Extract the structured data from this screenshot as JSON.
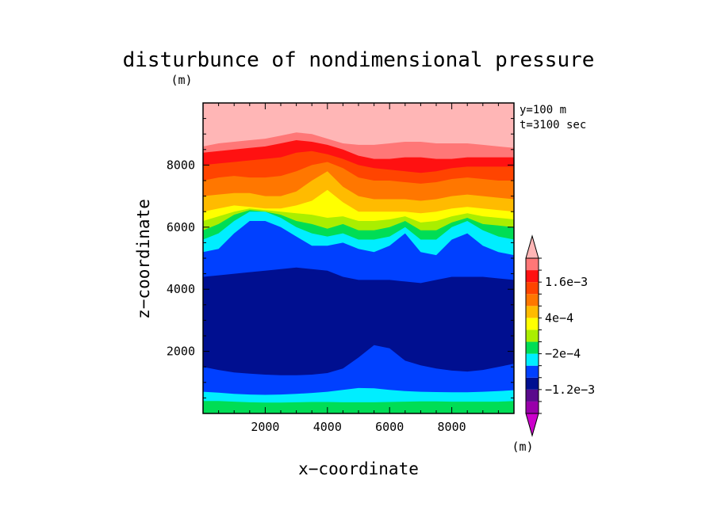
{
  "chart_data": {
    "type": "heatmap",
    "title": "disturbunce of nondimensional pressure",
    "xlabel": "x−coordinate",
    "ylabel": "z−coordinate",
    "x_unit": "(m)",
    "y_unit": "(m)",
    "annotations": [
      "y=100 m",
      "t=3100 sec"
    ],
    "xlim": [
      0,
      10000
    ],
    "ylim": [
      0,
      10000
    ],
    "x_ticks": [
      2000,
      4000,
      6000,
      8000
    ],
    "x_tick_labels": [
      "2000",
      "4000",
      "6000",
      "8000"
    ],
    "y_ticks": [
      2000,
      4000,
      6000,
      8000
    ],
    "y_tick_labels": [
      "2000",
      "4000",
      "6000",
      "8000"
    ],
    "colorbar": {
      "unit": "(m)",
      "levels": [
        -0.002,
        -0.0016,
        -0.0012,
        -0.0008,
        -0.0004,
        -0.0002,
        0,
        0.0002,
        0.0004,
        0.0008,
        0.0012,
        0.0016,
        0.002
      ],
      "colors": [
        "#cc00cc",
        "#9900aa",
        "#5a0a8c",
        "#000f90",
        "#0040ff",
        "#00eeff",
        "#00dd55",
        "#aaee00",
        "#ffff00",
        "#ffbb00",
        "#ff7700",
        "#ff4400",
        "#ff1111",
        "#ff7777",
        "#ffb6b6"
      ],
      "labels": [
        {
          "text": "1.6e−3",
          "value": 0.0016
        },
        {
          "text": "4e−4",
          "value": 0.0004
        },
        {
          "text": "−2e−4",
          "value": -0.0002
        },
        {
          "text": "−1.2e−3",
          "value": -0.0012
        }
      ]
    },
    "bands": [
      {
        "color": "#00dd55",
        "top": [
          400,
          400,
          380,
          360,
          350,
          350,
          360,
          370,
          370,
          360,
          360,
          360,
          370,
          380,
          390,
          390,
          380,
          380,
          380,
          380,
          400
        ]
      },
      {
        "color": "#00eeff",
        "top": [
          700,
          670,
          630,
          610,
          600,
          610,
          630,
          660,
          700,
          760,
          820,
          810,
          760,
          720,
          700,
          690,
          680,
          680,
          700,
          720,
          750
        ]
      },
      {
        "color": "#0040ff",
        "top": [
          1500,
          1400,
          1320,
          1280,
          1250,
          1230,
          1230,
          1250,
          1300,
          1450,
          1800,
          2200,
          2100,
          1700,
          1550,
          1450,
          1380,
          1350,
          1400,
          1500,
          1600
        ]
      },
      {
        "color": "#000f90",
        "top": [
          4400,
          4450,
          4500,
          4550,
          4600,
          4650,
          4700,
          4650,
          4600,
          4400,
          4300,
          4300,
          4300,
          4250,
          4200,
          4300,
          4400,
          4400,
          4400,
          4350,
          4300
        ]
      },
      {
        "color": "#0040ff",
        "top": [
          5200,
          5300,
          5800,
          6200,
          6200,
          6000,
          5700,
          5400,
          5400,
          5500,
          5300,
          5200,
          5400,
          5800,
          5200,
          5100,
          5600,
          5800,
          5400,
          5200,
          5100
        ]
      },
      {
        "color": "#00eeff",
        "top": [
          5600,
          5800,
          6200,
          6500,
          6500,
          6300,
          6000,
          5800,
          5700,
          5800,
          5600,
          5600,
          5700,
          6000,
          5600,
          5600,
          6000,
          6200,
          5900,
          5700,
          5600
        ]
      },
      {
        "color": "#00dd55",
        "top": [
          5900,
          6100,
          6400,
          6550,
          6500,
          6400,
          6200,
          6100,
          5950,
          6100,
          5900,
          5900,
          6000,
          6200,
          5900,
          5900,
          6150,
          6300,
          6100,
          6050,
          6000
        ]
      },
      {
        "color": "#aaee00",
        "top": [
          6200,
          6350,
          6500,
          6600,
          6550,
          6500,
          6450,
          6400,
          6300,
          6350,
          6200,
          6200,
          6250,
          6350,
          6150,
          6200,
          6350,
          6450,
          6350,
          6300,
          6250
        ]
      },
      {
        "color": "#ffff00",
        "top": [
          6500,
          6600,
          6700,
          6650,
          6600,
          6600,
          6700,
          6850,
          7200,
          6800,
          6500,
          6500,
          6500,
          6500,
          6450,
          6500,
          6600,
          6650,
          6600,
          6550,
          6500
        ]
      },
      {
        "color": "#ffbb00",
        "top": [
          7000,
          7050,
          7100,
          7100,
          7000,
          7000,
          7150,
          7500,
          7800,
          7300,
          7000,
          6900,
          6900,
          6900,
          6850,
          6900,
          7000,
          7050,
          7000,
          6950,
          6900
        ]
      },
      {
        "color": "#ff7700",
        "top": [
          7500,
          7600,
          7650,
          7600,
          7600,
          7650,
          7800,
          8000,
          8100,
          7900,
          7600,
          7500,
          7500,
          7450,
          7400,
          7450,
          7550,
          7600,
          7550,
          7500,
          7500
        ]
      },
      {
        "color": "#ff4400",
        "top": [
          8000,
          8050,
          8100,
          8150,
          8200,
          8250,
          8400,
          8450,
          8350,
          8200,
          8000,
          7900,
          7850,
          7800,
          7750,
          7800,
          7900,
          7950,
          7950,
          7950,
          7950
        ]
      },
      {
        "color": "#ff1111",
        "top": [
          8400,
          8450,
          8500,
          8550,
          8600,
          8700,
          8800,
          8750,
          8650,
          8500,
          8300,
          8200,
          8200,
          8250,
          8250,
          8200,
          8200,
          8250,
          8250,
          8250,
          8250
        ]
      },
      {
        "color": "#ff7777",
        "top": [
          8600,
          8700,
          8750,
          8800,
          8850,
          8950,
          9050,
          9000,
          8850,
          8700,
          8650,
          8650,
          8700,
          8750,
          8750,
          8700,
          8700,
          8700,
          8650,
          8600,
          8550
        ]
      },
      {
        "color": "#ffb6b6",
        "top": [
          10000,
          10000,
          10000,
          10000,
          10000,
          10000,
          10000,
          10000,
          10000,
          10000,
          10000,
          10000,
          10000,
          10000,
          10000,
          10000,
          10000,
          10000,
          10000,
          10000,
          10000
        ]
      }
    ]
  }
}
